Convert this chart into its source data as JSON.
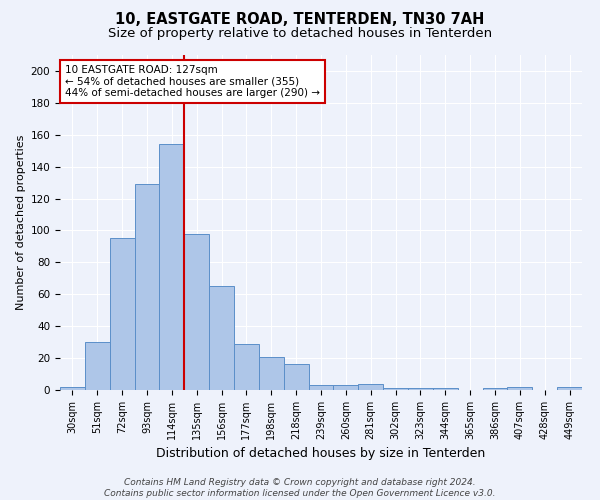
{
  "title": "10, EASTGATE ROAD, TENTERDEN, TN30 7AH",
  "subtitle": "Size of property relative to detached houses in Tenterden",
  "xlabel": "Distribution of detached houses by size in Tenterden",
  "ylabel": "Number of detached properties",
  "bar_labels": [
    "30sqm",
    "51sqm",
    "72sqm",
    "93sqm",
    "114sqm",
    "135sqm",
    "156sqm",
    "177sqm",
    "198sqm",
    "218sqm",
    "239sqm",
    "260sqm",
    "281sqm",
    "302sqm",
    "323sqm",
    "344sqm",
    "365sqm",
    "386sqm",
    "407sqm",
    "428sqm",
    "449sqm"
  ],
  "bar_values": [
    2,
    30,
    95,
    129,
    154,
    98,
    65,
    29,
    21,
    16,
    3,
    3,
    4,
    1,
    1,
    1,
    0,
    1,
    2,
    0,
    2
  ],
  "bar_color": "#aec6e8",
  "bar_edge_color": "#5b8fc9",
  "ylim": [
    0,
    210
  ],
  "yticks": [
    0,
    20,
    40,
    60,
    80,
    100,
    120,
    140,
    160,
    180,
    200
  ],
  "vline_x": 4.5,
  "annotation_line1": "10 EASTGATE ROAD: 127sqm",
  "annotation_line2": "← 54% of detached houses are smaller (355)",
  "annotation_line3": "44% of semi-detached houses are larger (290) →",
  "annotation_box_color": "#ffffff",
  "annotation_box_edge_color": "#cc0000",
  "vline_color": "#cc0000",
  "footer_line1": "Contains HM Land Registry data © Crown copyright and database right 2024.",
  "footer_line2": "Contains public sector information licensed under the Open Government Licence v3.0.",
  "background_color": "#eef2fb",
  "plot_background_color": "#eef2fb",
  "grid_color": "#ffffff",
  "title_fontsize": 10.5,
  "subtitle_fontsize": 9.5,
  "xlabel_fontsize": 9,
  "ylabel_fontsize": 8,
  "tick_fontsize": 7,
  "annotation_fontsize": 7.5,
  "footer_fontsize": 6.5
}
